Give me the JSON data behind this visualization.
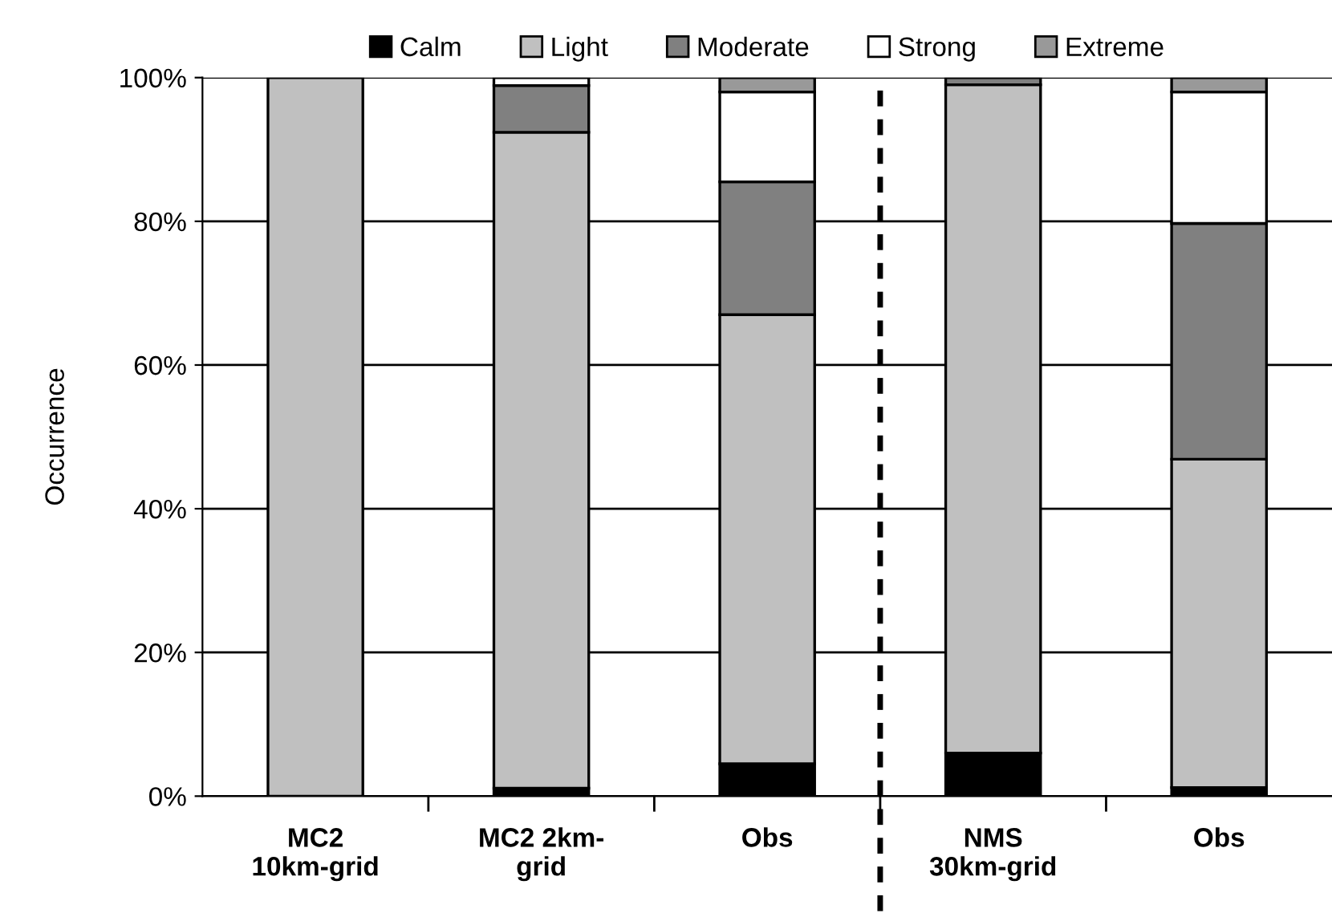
{
  "chart_data": {
    "type": "bar",
    "stacked": true,
    "ylabel": "Occurrence",
    "categories": [
      "MC2\n10km-grid",
      "MC2 2km-\ngrid",
      "Obs",
      "NMS\n30km-grid",
      "Obs"
    ],
    "series": [
      {
        "name": "Calm",
        "color": "#000000",
        "values": [
          0,
          1.1,
          4.5,
          6.0,
          1.2
        ]
      },
      {
        "name": "Light",
        "color": "#c0c0c0",
        "values": [
          100,
          91.3,
          62.5,
          93.0,
          45.7
        ]
      },
      {
        "name": "Moderate",
        "color": "#808080",
        "values": [
          0,
          6.5,
          18.5,
          1.0,
          32.8
        ]
      },
      {
        "name": "Strong",
        "color": "#ffffff",
        "values": [
          0,
          1.1,
          12.5,
          0,
          18.3
        ]
      },
      {
        "name": "Extreme",
        "color": "#999999",
        "values": [
          0,
          0,
          2.0,
          0,
          2.0
        ]
      }
    ],
    "ylim": [
      0,
      100
    ],
    "yticks": [
      {
        "value": 0,
        "label": "0%"
      },
      {
        "value": 20,
        "label": "20%"
      },
      {
        "value": 40,
        "label": "40%"
      },
      {
        "value": 60,
        "label": "60%"
      },
      {
        "value": 80,
        "label": "80%"
      },
      {
        "value": 100,
        "label": "100%"
      }
    ],
    "grid": "y",
    "legend": "top"
  }
}
